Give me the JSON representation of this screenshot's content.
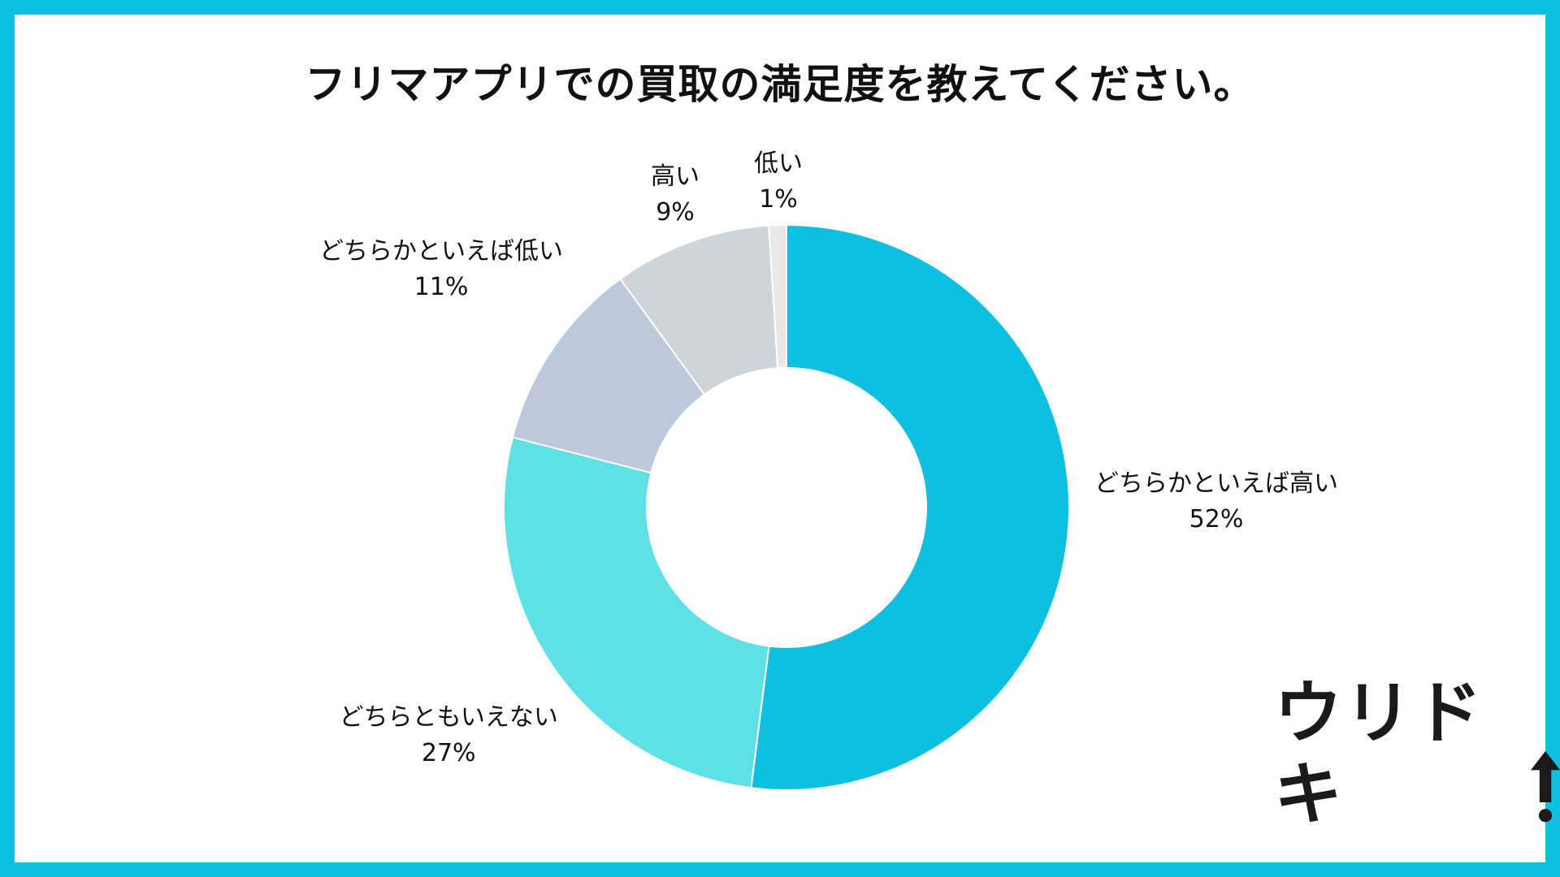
{
  "chart_data": {
    "type": "pie",
    "subtype": "donut",
    "title": "フリマアプリでの買取の満足度を教えてください。",
    "slices": [
      {
        "label": "どちらかといえば高い",
        "value": 52,
        "value_label": "52%",
        "color": "#0dbfe0"
      },
      {
        "label": "どちらともいえない",
        "value": 27,
        "value_label": "27%",
        "color": "#5fe0e7"
      },
      {
        "label": "どちらかといえば低い",
        "value": 11,
        "value_label": "11%",
        "color": "#bcc8dc"
      },
      {
        "label": "高い",
        "value": 9,
        "value_label": "9%",
        "color": "#cfd4d8"
      },
      {
        "label": "低い",
        "value": 1,
        "value_label": "1%",
        "color": "#e8e8e8"
      }
    ],
    "start_angle": "12 o'clock",
    "direction": "clockwise",
    "legend": "none"
  },
  "brand": {
    "logo_text": "ウリドキ",
    "frame_color": "#0dbfe0"
  }
}
